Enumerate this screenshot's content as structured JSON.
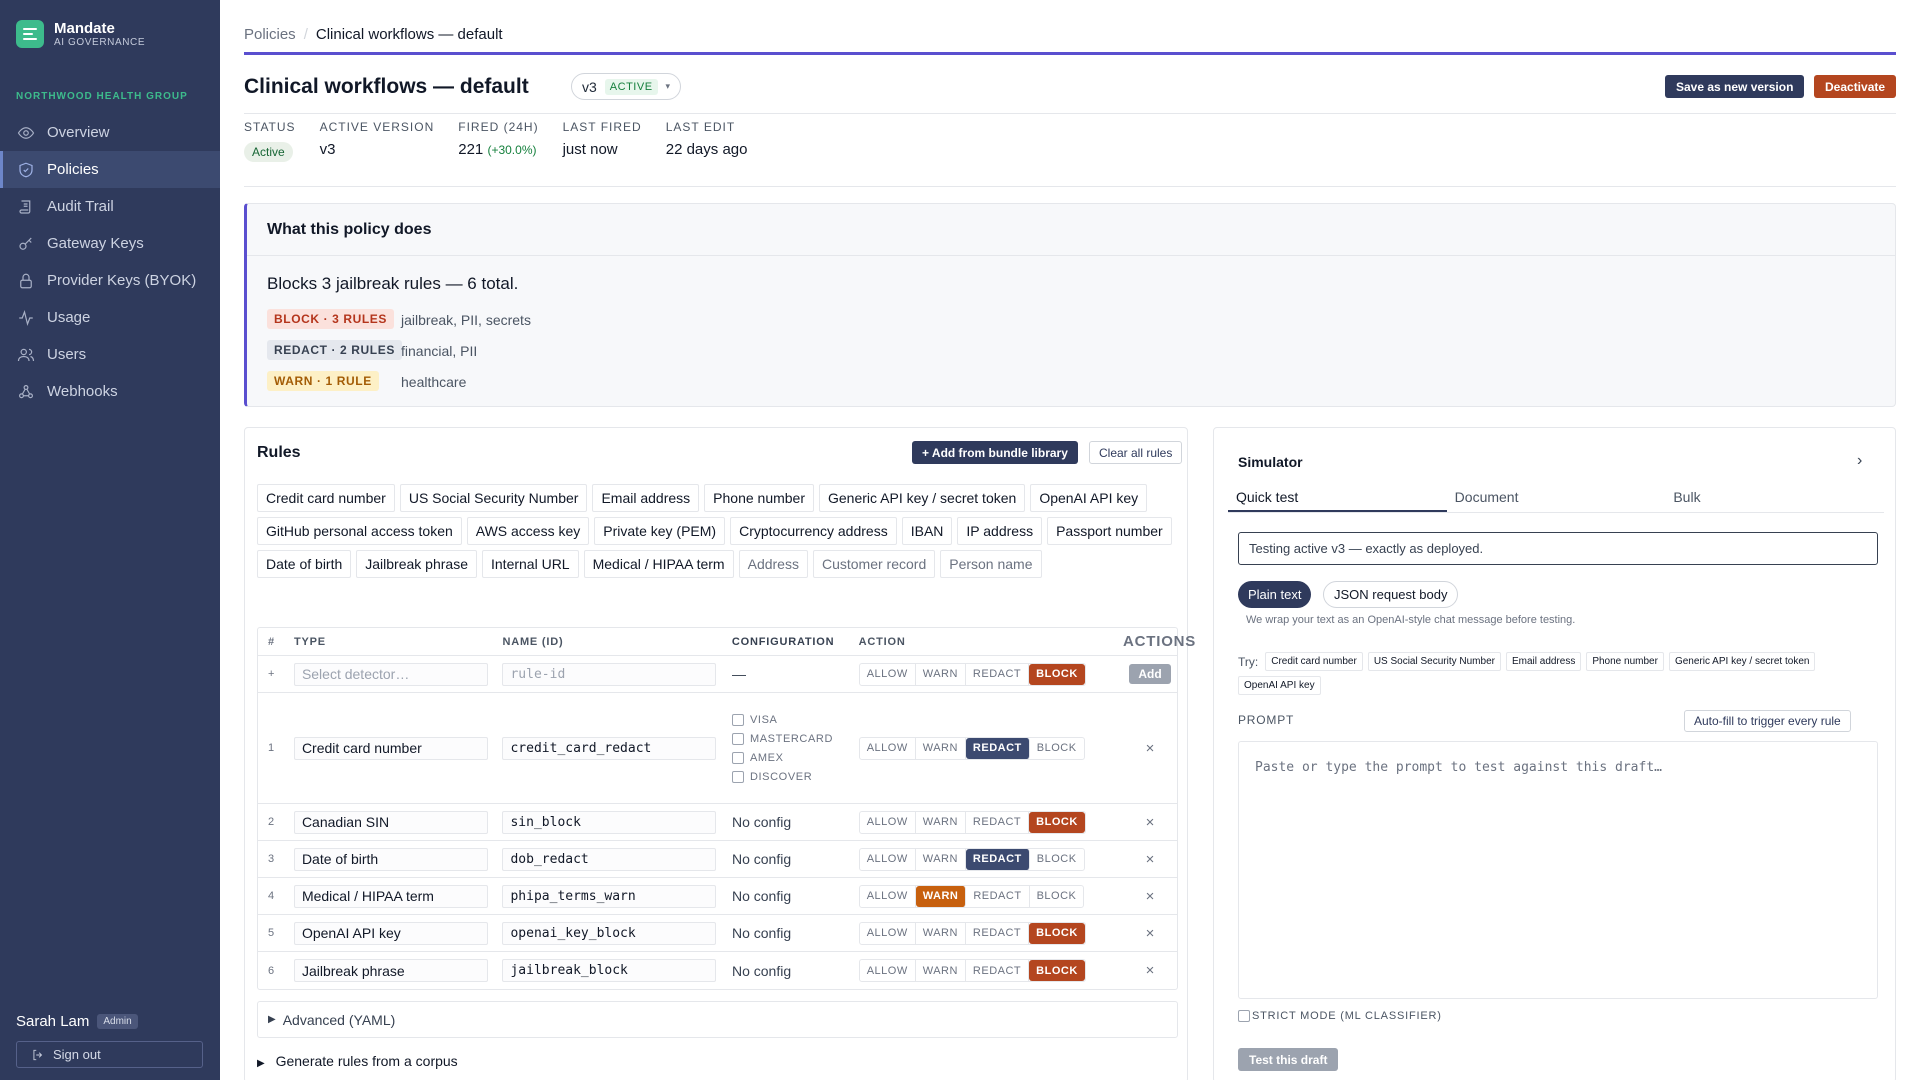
{
  "brand": {
    "name": "Mandate",
    "subtitle": "AI GOVERNANCE"
  },
  "org": "NORTHWOOD HEALTH GROUP",
  "nav": [
    {
      "label": "Overview",
      "icon": "eye-icon"
    },
    {
      "label": "Policies",
      "icon": "shield-icon",
      "active": true
    },
    {
      "label": "Audit Trail",
      "icon": "scroll-icon"
    },
    {
      "label": "Gateway Keys",
      "icon": "key-icon"
    },
    {
      "label": "Provider Keys (BYOK)",
      "icon": "lock-icon"
    },
    {
      "label": "Usage",
      "icon": "activity-icon"
    },
    {
      "label": "Users",
      "icon": "users-icon"
    },
    {
      "label": "Webhooks",
      "icon": "webhook-icon"
    }
  ],
  "user": {
    "name": "Sarah Lam",
    "role": "Admin",
    "signout": "Sign out"
  },
  "breadcrumb": {
    "parent": "Policies",
    "sep": "/",
    "current": "Clinical workflows — default"
  },
  "header": {
    "title": "Clinical workflows — default",
    "version": "v3",
    "version_status": "ACTIVE",
    "version_caret": "▾",
    "save_label": "Save as new version",
    "deactivate_label": "Deactivate"
  },
  "stats": {
    "status": {
      "label": "STATUS",
      "value": "Active"
    },
    "active_version": {
      "label": "ACTIVE VERSION",
      "value": "v3"
    },
    "fired": {
      "label": "FIRED (24H)",
      "value": "221",
      "delta": "(+30.0%)"
    },
    "last_fired": {
      "label": "LAST FIRED",
      "value": "just now"
    },
    "last_edit": {
      "label": "LAST EDIT",
      "value": "22 days ago"
    }
  },
  "policy_summary": {
    "heading": "What this policy does",
    "summary": "Blocks 3 jailbreak rules — 6 total.",
    "rows": [
      {
        "badge": "BLOCK · 3 RULES",
        "cats": "jailbreak, PII, secrets"
      },
      {
        "badge": "REDACT · 2 RULES",
        "cats": "financial, PII"
      },
      {
        "badge": "WARN · 1 RULE",
        "cats": "healthcare"
      }
    ]
  },
  "rules": {
    "title": "Rules",
    "add_bundle": "+ Add from bundle library",
    "clear_all": "Clear all rules",
    "detectors": [
      "Credit card number",
      "US Social Security Number",
      "Email address",
      "Phone number",
      "Generic API key / secret token",
      "OpenAI API key",
      "GitHub personal access token",
      "AWS access key",
      "Private key (PEM)",
      "Cryptocurrency address",
      "IBAN",
      "IP address",
      "Passport number",
      "Date of birth",
      "Jailbreak phrase",
      "Internal URL",
      "Medical / HIPAA term",
      "Address",
      "Customer record",
      "Person name"
    ],
    "columns": {
      "num": "#",
      "type": "TYPE",
      "name": "NAME (ID)",
      "config": "CONFIGURATION",
      "action": "ACTION",
      "actions": "ACTIONS"
    },
    "new_row": {
      "num": "+",
      "type_placeholder": "Select detector…",
      "name_placeholder": "rule-id",
      "config": "—",
      "add": "Add"
    },
    "action_labels": [
      "ALLOW",
      "WARN",
      "REDACT",
      "BLOCK"
    ],
    "no_config": "No config",
    "card_networks": [
      "VISA",
      "MASTERCARD",
      "AMEX",
      "DISCOVER"
    ],
    "rows": [
      {
        "num": "1",
        "type": "Credit card number",
        "id": "credit_card_redact",
        "action": "REDACT"
      },
      {
        "num": "2",
        "type": "Canadian SIN",
        "id": "sin_block",
        "action": "BLOCK"
      },
      {
        "num": "3",
        "type": "Date of birth",
        "id": "dob_redact",
        "action": "REDACT"
      },
      {
        "num": "4",
        "type": "Medical / HIPAA term",
        "id": "phipa_terms_warn",
        "action": "WARN"
      },
      {
        "num": "5",
        "type": "OpenAI API key",
        "id": "openai_key_block",
        "action": "BLOCK"
      },
      {
        "num": "6",
        "type": "Jailbreak phrase",
        "id": "jailbreak_block",
        "action": "BLOCK"
      }
    ],
    "remove_glyph": "×",
    "advanced": "Advanced (YAML)",
    "generate": "Generate rules from a corpus"
  },
  "simulator": {
    "title": "Simulator",
    "chevron": "›",
    "tabs": [
      "Quick test",
      "Document",
      "Bulk"
    ],
    "testing_note": "Testing active v3 — exactly as deployed.",
    "format_plain": "Plain text",
    "format_json": "JSON request body",
    "wrap_note": "We wrap your text as an OpenAI-style chat message before testing.",
    "try_label": "Try:",
    "try_chips": [
      "Credit card number",
      "US Social Security Number",
      "Email address",
      "Phone number",
      "Generic API key / secret token",
      "OpenAI API key"
    ],
    "prompt_label": "PROMPT",
    "autofill": "Auto-fill to trigger every rule",
    "prompt_placeholder": "Paste or type the prompt to test against this draft…",
    "strict_mode": "STRICT MODE (ML CLASSIFIER)",
    "test_button": "Test this draft"
  },
  "colors": {
    "sidebar": "#2f3a5c",
    "accent": "#5a4fcf",
    "brand_green": "#3dbb8c",
    "block": "#b4461f",
    "redact": "#3c4a70",
    "warn": "#c7600e"
  }
}
